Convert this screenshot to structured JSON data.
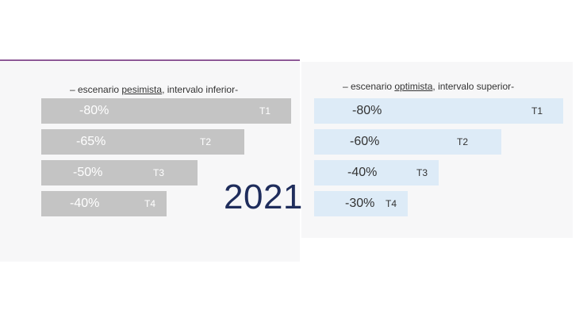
{
  "year": "2021",
  "chart_data": [
    {
      "type": "bar",
      "orientation": "horizontal",
      "title_prefix": "– escenario ",
      "title_emphasis": "pesimista",
      "title_suffix": ", intervalo inferior-",
      "categories": [
        "T1",
        "T2",
        "T3",
        "T4"
      ],
      "values": [
        -80,
        -65,
        -50,
        -40
      ],
      "value_labels": [
        "-80%",
        "-65%",
        "-50%",
        "-40%"
      ],
      "bar_color": "#c4c4c4",
      "text_color": "#ffffff"
    },
    {
      "type": "bar",
      "orientation": "horizontal",
      "title_prefix": "– escenario ",
      "title_emphasis": "optimista",
      "title_suffix": ", intervalo superior-",
      "categories": [
        "T1",
        "T2",
        "T3",
        "T4"
      ],
      "values": [
        -80,
        -60,
        -40,
        -30
      ],
      "value_labels": [
        "-80%",
        "-60%",
        "-40%",
        "-30%"
      ],
      "bar_color": "#ddebf7",
      "text_color": "#333333"
    }
  ]
}
